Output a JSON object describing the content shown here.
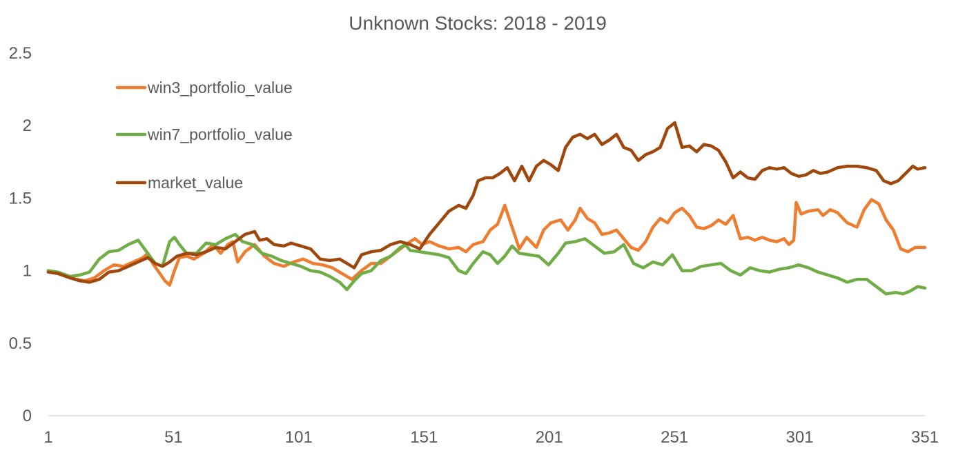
{
  "chart_data": {
    "type": "line",
    "title": "Unknown Stocks: 2018 - 2019",
    "xlabel": "",
    "ylabel": "",
    "xlim": [
      1,
      351
    ],
    "ylim": [
      0,
      2.5
    ],
    "grid": false,
    "legend_position": "top-left",
    "x_ticks": [
      1,
      51,
      101,
      151,
      201,
      251,
      301,
      351
    ],
    "x_tick_labels": [
      "1",
      "51",
      "101",
      "151",
      "201",
      "251",
      "301",
      "351"
    ],
    "y_ticks": [
      0,
      0.5,
      1,
      1.5,
      2,
      2.5
    ],
    "y_tick_labels": [
      "0",
      "0.5",
      "1",
      "1.5",
      "2",
      "2.5"
    ],
    "series": [
      {
        "name": "win3_portfolio_value",
        "color": "#ED7D31",
        "points": [
          [
            1,
            1.0
          ],
          [
            5,
            0.98
          ],
          [
            10,
            0.95
          ],
          [
            16,
            0.93
          ],
          [
            20,
            0.95
          ],
          [
            24,
            1.0
          ],
          [
            28,
            1.04
          ],
          [
            32,
            1.03
          ],
          [
            36,
            1.06
          ],
          [
            40,
            1.09
          ],
          [
            42,
            1.12
          ],
          [
            44,
            1.05
          ],
          [
            47,
            0.98
          ],
          [
            49,
            0.93
          ],
          [
            51,
            0.9
          ],
          [
            53,
            1.0
          ],
          [
            55,
            1.09
          ],
          [
            58,
            1.1
          ],
          [
            61,
            1.08
          ],
          [
            65,
            1.12
          ],
          [
            69,
            1.18
          ],
          [
            72,
            1.12
          ],
          [
            75,
            1.18
          ],
          [
            77,
            1.2
          ],
          [
            79,
            1.06
          ],
          [
            82,
            1.13
          ],
          [
            86,
            1.18
          ],
          [
            90,
            1.1
          ],
          [
            94,
            1.05
          ],
          [
            98,
            1.03
          ],
          [
            102,
            1.06
          ],
          [
            106,
            1.08
          ],
          [
            110,
            1.05
          ],
          [
            114,
            1.04
          ],
          [
            118,
            1.02
          ],
          [
            122,
            0.98
          ],
          [
            126,
            0.94
          ],
          [
            130,
            1.0
          ],
          [
            134,
            1.05
          ],
          [
            138,
            1.05
          ],
          [
            142,
            1.1
          ],
          [
            146,
            1.15
          ],
          [
            150,
            1.2
          ],
          [
            152,
            1.22
          ],
          [
            155,
            1.18
          ],
          [
            158,
            1.2
          ],
          [
            162,
            1.17
          ],
          [
            166,
            1.15
          ],
          [
            170,
            1.16
          ],
          [
            173,
            1.13
          ],
          [
            176,
            1.18
          ],
          [
            180,
            1.2
          ],
          [
            183,
            1.28
          ],
          [
            186,
            1.32
          ],
          [
            189,
            1.45
          ],
          [
            192,
            1.3
          ],
          [
            195,
            1.15
          ],
          [
            198,
            1.23
          ],
          [
            202,
            1.16
          ],
          [
            205,
            1.28
          ],
          [
            208,
            1.33
          ],
          [
            212,
            1.35
          ],
          [
            215,
            1.28
          ],
          [
            218,
            1.35
          ],
          [
            220,
            1.43
          ],
          [
            223,
            1.36
          ],
          [
            226,
            1.33
          ],
          [
            229,
            1.25
          ],
          [
            232,
            1.26
          ],
          [
            235,
            1.28
          ],
          [
            238,
            1.22
          ],
          [
            241,
            1.16
          ],
          [
            244,
            1.14
          ],
          [
            247,
            1.2
          ],
          [
            250,
            1.3
          ],
          [
            253,
            1.36
          ],
          [
            256,
            1.33
          ],
          [
            259,
            1.4
          ],
          [
            262,
            1.43
          ],
          [
            265,
            1.38
          ],
          [
            268,
            1.3
          ],
          [
            271,
            1.29
          ],
          [
            274,
            1.31
          ],
          [
            277,
            1.35
          ],
          [
            280,
            1.32
          ],
          [
            283,
            1.38
          ],
          [
            286,
            1.22
          ],
          [
            289,
            1.23
          ],
          [
            292,
            1.21
          ],
          [
            295,
            1.23
          ],
          [
            298,
            1.21
          ],
          [
            301,
            1.2
          ],
          [
            304,
            1.22
          ],
          [
            306,
            1.18
          ],
          [
            308,
            1.21
          ],
          [
            309,
            1.47
          ],
          [
            311,
            1.39
          ],
          [
            314,
            1.41
          ],
          [
            318,
            1.42
          ],
          [
            320,
            1.38
          ],
          [
            323,
            1.42
          ],
          [
            326,
            1.4
          ],
          [
            330,
            1.33
          ],
          [
            334,
            1.3
          ],
          [
            337,
            1.42
          ],
          [
            340,
            1.49
          ],
          [
            343,
            1.46
          ],
          [
            346,
            1.35
          ],
          [
            349,
            1.28
          ],
          [
            352,
            1.15
          ],
          [
            355,
            1.13
          ],
          [
            358,
            1.16
          ],
          [
            362,
            1.16
          ]
        ]
      },
      {
        "name": "win7_portfolio_value",
        "color": "#70AD47",
        "points": [
          [
            1,
            1.0
          ],
          [
            5,
            0.99
          ],
          [
            10,
            0.96
          ],
          [
            14,
            0.97
          ],
          [
            18,
            0.99
          ],
          [
            22,
            1.08
          ],
          [
            26,
            1.13
          ],
          [
            30,
            1.14
          ],
          [
            34,
            1.18
          ],
          [
            38,
            1.21
          ],
          [
            42,
            1.12
          ],
          [
            45,
            1.05
          ],
          [
            48,
            1.03
          ],
          [
            51,
            1.2
          ],
          [
            53,
            1.23
          ],
          [
            55,
            1.18
          ],
          [
            58,
            1.12
          ],
          [
            62,
            1.12
          ],
          [
            66,
            1.19
          ],
          [
            70,
            1.18
          ],
          [
            74,
            1.22
          ],
          [
            78,
            1.25
          ],
          [
            81,
            1.2
          ],
          [
            85,
            1.18
          ],
          [
            89,
            1.12
          ],
          [
            93,
            1.1
          ],
          [
            97,
            1.07
          ],
          [
            101,
            1.05
          ],
          [
            105,
            1.03
          ],
          [
            109,
            1.0
          ],
          [
            113,
            0.99
          ],
          [
            117,
            0.96
          ],
          [
            121,
            0.92
          ],
          [
            124,
            0.87
          ],
          [
            127,
            0.93
          ],
          [
            130,
            0.98
          ],
          [
            134,
            1.0
          ],
          [
            138,
            1.07
          ],
          [
            142,
            1.1
          ],
          [
            146,
            1.16
          ],
          [
            148,
            1.18
          ],
          [
            150,
            1.14
          ],
          [
            154,
            1.13
          ],
          [
            158,
            1.12
          ],
          [
            162,
            1.11
          ],
          [
            166,
            1.09
          ],
          [
            170,
            1.0
          ],
          [
            173,
            0.98
          ],
          [
            176,
            1.05
          ],
          [
            180,
            1.13
          ],
          [
            183,
            1.11
          ],
          [
            186,
            1.05
          ],
          [
            189,
            1.1
          ],
          [
            192,
            1.17
          ],
          [
            195,
            1.12
          ],
          [
            199,
            1.11
          ],
          [
            203,
            1.1
          ],
          [
            207,
            1.04
          ],
          [
            211,
            1.12
          ],
          [
            214,
            1.19
          ],
          [
            218,
            1.2
          ],
          [
            222,
            1.22
          ],
          [
            226,
            1.17
          ],
          [
            230,
            1.12
          ],
          [
            234,
            1.13
          ],
          [
            238,
            1.18
          ],
          [
            242,
            1.05
          ],
          [
            246,
            1.02
          ],
          [
            250,
            1.06
          ],
          [
            254,
            1.04
          ],
          [
            258,
            1.11
          ],
          [
            262,
            1.0
          ],
          [
            266,
            1.0
          ],
          [
            270,
            1.03
          ],
          [
            274,
            1.04
          ],
          [
            278,
            1.05
          ],
          [
            282,
            1.0
          ],
          [
            286,
            0.97
          ],
          [
            290,
            1.02
          ],
          [
            294,
            1.0
          ],
          [
            298,
            0.99
          ],
          [
            302,
            1.01
          ],
          [
            306,
            1.02
          ],
          [
            310,
            1.04
          ],
          [
            314,
            1.02
          ],
          [
            318,
            0.99
          ],
          [
            322,
            0.97
          ],
          [
            326,
            0.95
          ],
          [
            330,
            0.92
          ],
          [
            334,
            0.94
          ],
          [
            338,
            0.94
          ],
          [
            342,
            0.89
          ],
          [
            346,
            0.84
          ],
          [
            350,
            0.85
          ],
          [
            353,
            0.84
          ],
          [
            356,
            0.86
          ],
          [
            359,
            0.89
          ],
          [
            362,
            0.88
          ]
        ]
      },
      {
        "name": "market_value",
        "color": "#9E480E",
        "points": [
          [
            1,
            0.99
          ],
          [
            5,
            0.98
          ],
          [
            10,
            0.95
          ],
          [
            14,
            0.93
          ],
          [
            18,
            0.92
          ],
          [
            22,
            0.94
          ],
          [
            26,
            0.99
          ],
          [
            30,
            1.0
          ],
          [
            34,
            1.03
          ],
          [
            38,
            1.06
          ],
          [
            42,
            1.09
          ],
          [
            45,
            1.05
          ],
          [
            48,
            1.03
          ],
          [
            51,
            1.06
          ],
          [
            54,
            1.1
          ],
          [
            58,
            1.12
          ],
          [
            62,
            1.11
          ],
          [
            66,
            1.13
          ],
          [
            70,
            1.16
          ],
          [
            74,
            1.15
          ],
          [
            78,
            1.2
          ],
          [
            82,
            1.25
          ],
          [
            86,
            1.27
          ],
          [
            88,
            1.21
          ],
          [
            91,
            1.22
          ],
          [
            94,
            1.18
          ],
          [
            98,
            1.17
          ],
          [
            101,
            1.19
          ],
          [
            105,
            1.17
          ],
          [
            109,
            1.15
          ],
          [
            113,
            1.08
          ],
          [
            117,
            1.07
          ],
          [
            121,
            1.08
          ],
          [
            124,
            1.05
          ],
          [
            127,
            1.02
          ],
          [
            130,
            1.11
          ],
          [
            134,
            1.13
          ],
          [
            138,
            1.14
          ],
          [
            142,
            1.18
          ],
          [
            146,
            1.2
          ],
          [
            150,
            1.18
          ],
          [
            154,
            1.15
          ],
          [
            158,
            1.25
          ],
          [
            162,
            1.33
          ],
          [
            166,
            1.41
          ],
          [
            170,
            1.45
          ],
          [
            173,
            1.43
          ],
          [
            176,
            1.52
          ],
          [
            178,
            1.62
          ],
          [
            181,
            1.64
          ],
          [
            184,
            1.64
          ],
          [
            187,
            1.67
          ],
          [
            190,
            1.71
          ],
          [
            193,
            1.62
          ],
          [
            196,
            1.72
          ],
          [
            199,
            1.62
          ],
          [
            202,
            1.72
          ],
          [
            205,
            1.76
          ],
          [
            208,
            1.73
          ],
          [
            211,
            1.69
          ],
          [
            214,
            1.85
          ],
          [
            217,
            1.92
          ],
          [
            220,
            1.94
          ],
          [
            223,
            1.91
          ],
          [
            226,
            1.94
          ],
          [
            229,
            1.87
          ],
          [
            232,
            1.9
          ],
          [
            235,
            1.94
          ],
          [
            238,
            1.85
          ],
          [
            241,
            1.83
          ],
          [
            244,
            1.76
          ],
          [
            247,
            1.8
          ],
          [
            250,
            1.82
          ],
          [
            253,
            1.85
          ],
          [
            256,
            1.98
          ],
          [
            259,
            2.02
          ],
          [
            262,
            1.85
          ],
          [
            265,
            1.86
          ],
          [
            268,
            1.82
          ],
          [
            271,
            1.87
          ],
          [
            274,
            1.86
          ],
          [
            277,
            1.83
          ],
          [
            280,
            1.75
          ],
          [
            283,
            1.64
          ],
          [
            286,
            1.68
          ],
          [
            289,
            1.64
          ],
          [
            292,
            1.63
          ],
          [
            295,
            1.69
          ],
          [
            298,
            1.71
          ],
          [
            301,
            1.7
          ],
          [
            304,
            1.71
          ],
          [
            307,
            1.67
          ],
          [
            310,
            1.65
          ],
          [
            313,
            1.66
          ],
          [
            316,
            1.69
          ],
          [
            319,
            1.67
          ],
          [
            322,
            1.68
          ],
          [
            326,
            1.71
          ],
          [
            330,
            1.72
          ],
          [
            334,
            1.72
          ],
          [
            338,
            1.71
          ],
          [
            342,
            1.69
          ],
          [
            345,
            1.62
          ],
          [
            348,
            1.6
          ],
          [
            351,
            1.62
          ],
          [
            354,
            1.67
          ],
          [
            357,
            1.72
          ],
          [
            359,
            1.7
          ],
          [
            362,
            1.71
          ]
        ]
      }
    ]
  }
}
